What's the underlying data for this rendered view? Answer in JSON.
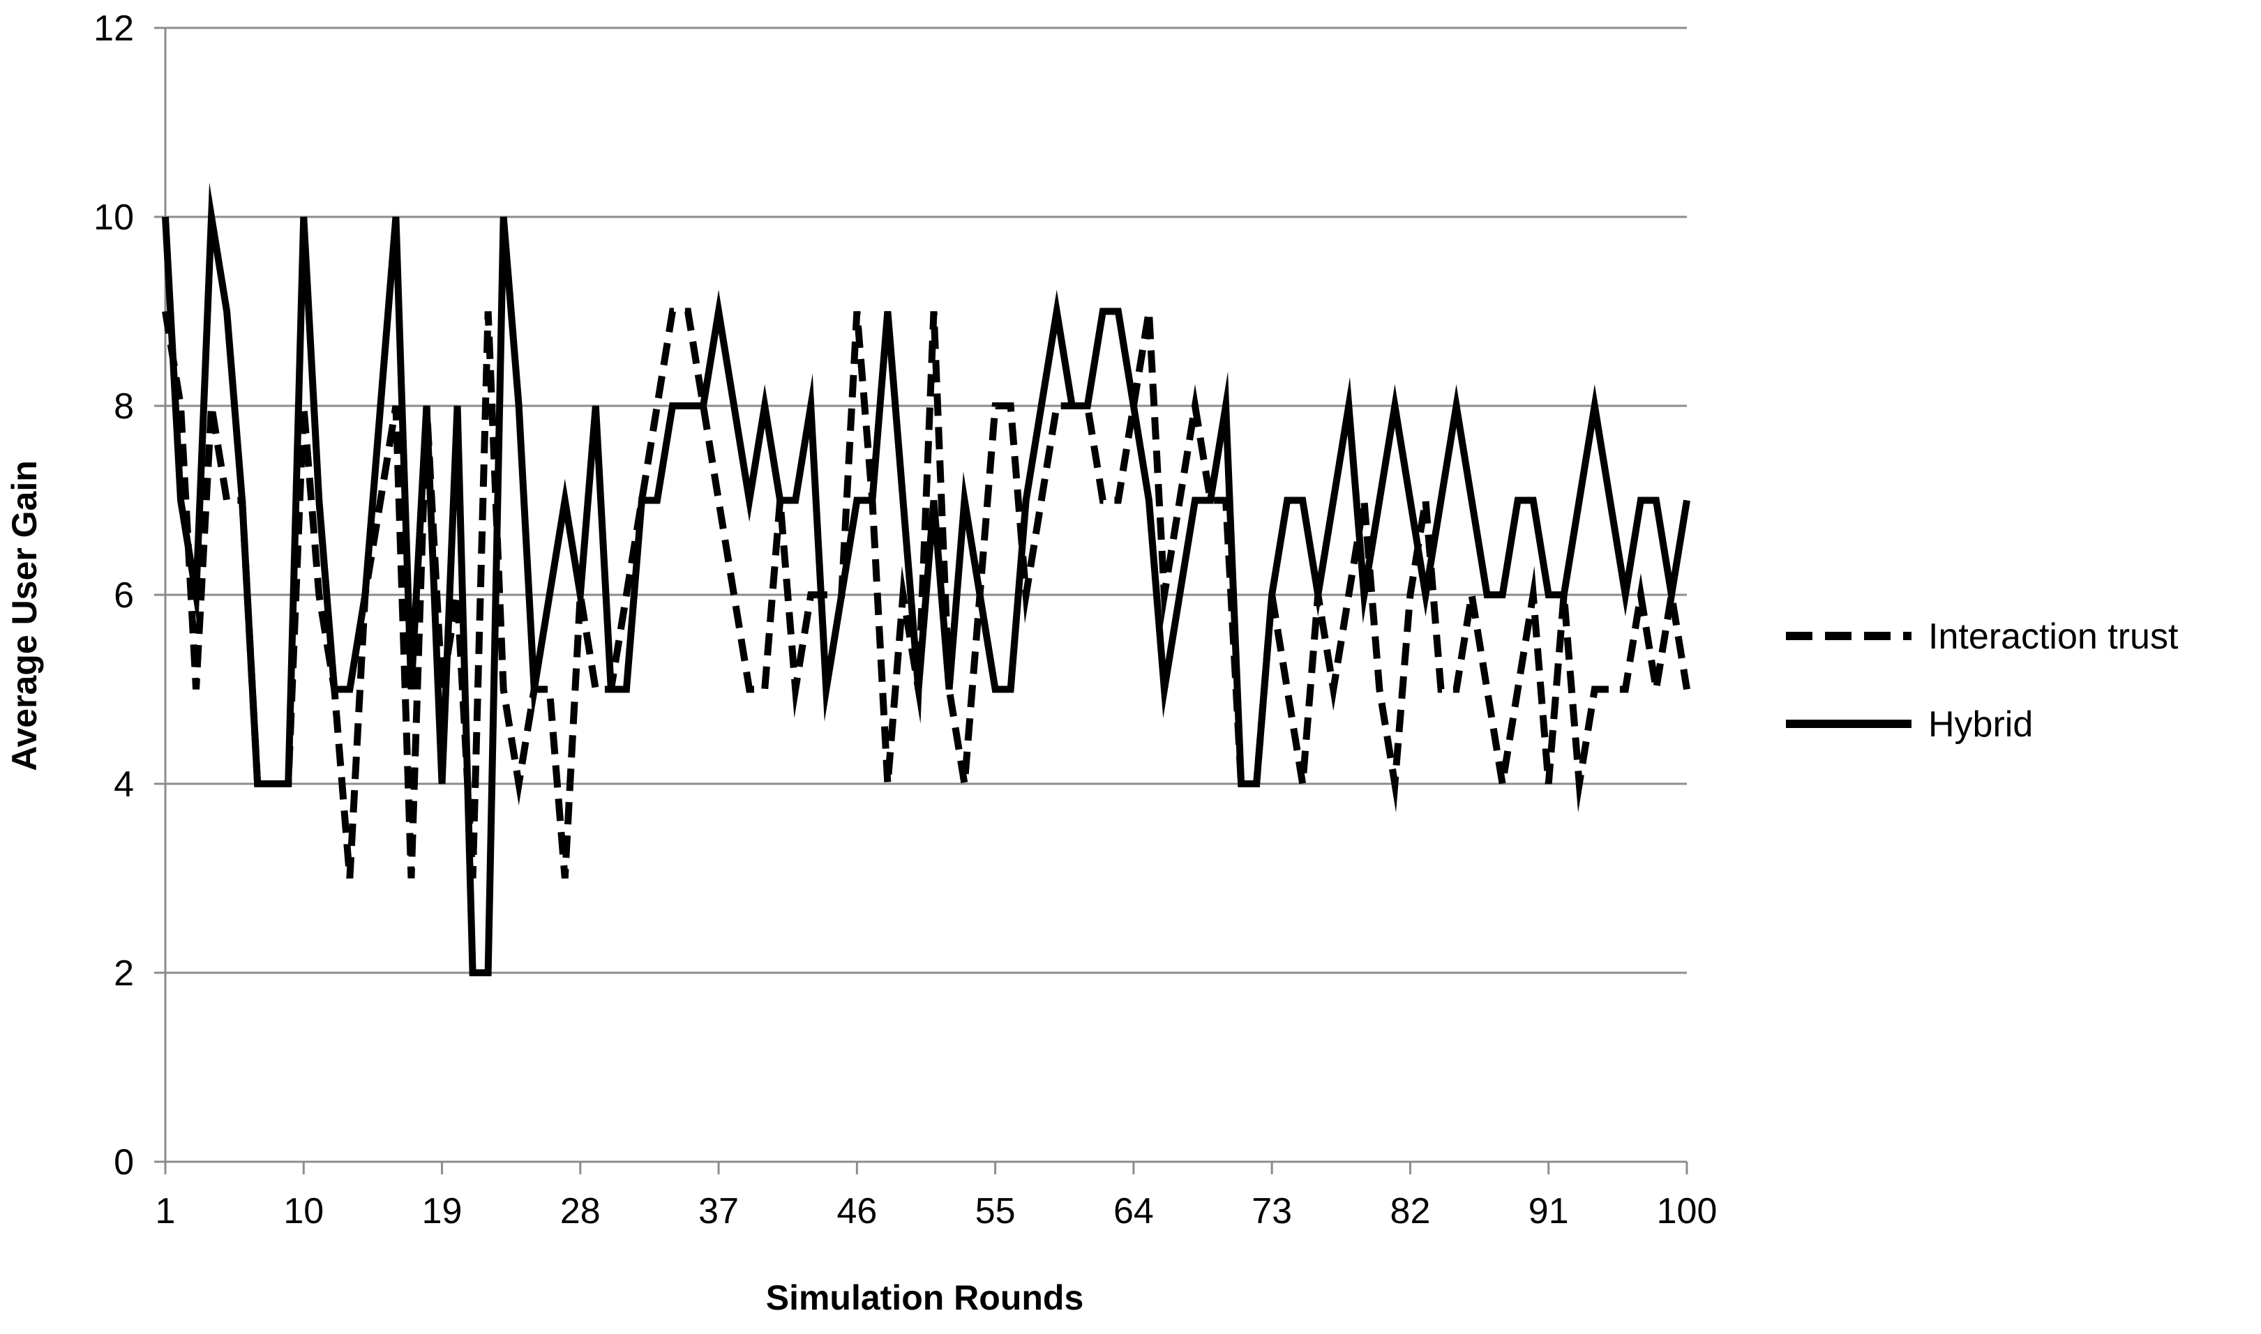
{
  "chart_data": {
    "type": "line",
    "xlabel": "Simulation Rounds",
    "ylabel": "Average User Gain",
    "ylim": [
      0,
      12
    ],
    "yticks": [
      0,
      2,
      4,
      6,
      8,
      10,
      12
    ],
    "xlim": [
      1,
      100
    ],
    "xtick_labels": [
      "1",
      "10",
      "19",
      "28",
      "37",
      "46",
      "55",
      "64",
      "73",
      "82",
      "91",
      "100"
    ],
    "xtick_values": [
      1,
      10,
      19,
      28,
      37,
      46,
      55,
      64,
      73,
      82,
      91,
      100
    ],
    "grid": "horizontal",
    "legend_position": "right",
    "x": [
      1,
      2,
      3,
      4,
      5,
      6,
      7,
      8,
      9,
      10,
      11,
      12,
      13,
      14,
      15,
      16,
      17,
      18,
      19,
      20,
      21,
      22,
      23,
      24,
      25,
      26,
      27,
      28,
      29,
      30,
      31,
      32,
      33,
      34,
      35,
      36,
      37,
      38,
      39,
      40,
      41,
      42,
      43,
      44,
      45,
      46,
      47,
      48,
      49,
      50,
      51,
      52,
      53,
      54,
      55,
      56,
      57,
      58,
      59,
      60,
      61,
      62,
      63,
      64,
      65,
      66,
      67,
      68,
      69,
      70,
      71,
      72,
      73,
      74,
      75,
      76,
      77,
      78,
      79,
      80,
      81,
      82,
      83,
      84,
      85,
      86,
      87,
      88,
      89,
      90,
      91,
      92,
      93,
      94,
      95,
      96,
      97,
      98,
      99,
      100
    ],
    "series": [
      {
        "name": "Interaction trust",
        "style": "dashed",
        "color": "#000000",
        "values": [
          9,
          8,
          5,
          8,
          7,
          7,
          4,
          4,
          4,
          8,
          6,
          5,
          3,
          6,
          7,
          8,
          3,
          8,
          5,
          6,
          3,
          9,
          5,
          4,
          5,
          5,
          3,
          6,
          5,
          5,
          6,
          7,
          8,
          9,
          9,
          8,
          7,
          6,
          5,
          5,
          7,
          5,
          6,
          6,
          6,
          9,
          7,
          4,
          6,
          5,
          9,
          5,
          4,
          6,
          8,
          8,
          6,
          7,
          8,
          8,
          8,
          7,
          7,
          8,
          9,
          6,
          7,
          8,
          7,
          7,
          4,
          4,
          6,
          5,
          4,
          6,
          5,
          6,
          7,
          5,
          4,
          6,
          7,
          5,
          5,
          6,
          5,
          4,
          5,
          6,
          4,
          6,
          4,
          5,
          5,
          5,
          6,
          5,
          6,
          5
        ]
      },
      {
        "name": "Hybrid",
        "style": "solid",
        "color": "#000000",
        "values": [
          10,
          7,
          6,
          10,
          9,
          7,
          4,
          4,
          4,
          10,
          7,
          5,
          5,
          6,
          8,
          10,
          5,
          8,
          4,
          8,
          2,
          2,
          10,
          8,
          5,
          6,
          7,
          6,
          8,
          5,
          5,
          7,
          7,
          8,
          8,
          8,
          9,
          8,
          7,
          8,
          7,
          7,
          8,
          5,
          6,
          7,
          7,
          9,
          7,
          5,
          7,
          5,
          7,
          6,
          5,
          5,
          7,
          8,
          9,
          8,
          8,
          9,
          9,
          8,
          7,
          5,
          6,
          7,
          7,
          8,
          4,
          4,
          6,
          7,
          7,
          6,
          7,
          8,
          6,
          7,
          8,
          7,
          6,
          7,
          8,
          7,
          6,
          6,
          7,
          7,
          6,
          6,
          7,
          8,
          7,
          6,
          7,
          7,
          6,
          7
        ]
      }
    ]
  }
}
